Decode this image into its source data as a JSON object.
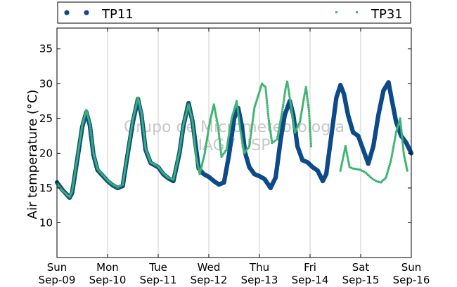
{
  "chart_data": {
    "type": "scatter",
    "title": "",
    "xlabel": "",
    "ylabel": "Air temperature (°C)",
    "ylim": [
      5,
      38
    ],
    "xlim_days": [
      0,
      7
    ],
    "y_ticks": [
      10,
      15,
      20,
      25,
      30,
      35
    ],
    "x_ticks": [
      {
        "day": "Sun",
        "date": "Sep-09"
      },
      {
        "day": "Mon",
        "date": "Sep-10"
      },
      {
        "day": "Tue",
        "date": "Sep-11"
      },
      {
        "day": "Wed",
        "date": "Sep-12"
      },
      {
        "day": "Thu",
        "date": "Sep-13"
      },
      {
        "day": "Fri",
        "date": "Sep-14"
      },
      {
        "day": "Sat",
        "date": "Sep-15"
      },
      {
        "day": "Sun",
        "date": "Sep-16"
      }
    ],
    "grid": "vertical",
    "legend_position": "top, outside plot",
    "watermark": [
      "Grupo de Micrometeorologia",
      "IAG / USP"
    ],
    "x_unit": "days since Sep-09 00:00",
    "series": [
      {
        "name": "TP11",
        "color": "#0d4a8a",
        "marker": "circle",
        "points": [
          [
            0.0,
            15.8
          ],
          [
            0.1,
            14.8
          ],
          [
            0.2,
            14.0
          ],
          [
            0.25,
            13.6
          ],
          [
            0.3,
            14.3
          ],
          [
            0.4,
            19.0
          ],
          [
            0.5,
            23.8
          ],
          [
            0.58,
            25.9
          ],
          [
            0.65,
            24.0
          ],
          [
            0.72,
            19.8
          ],
          [
            0.8,
            17.6
          ],
          [
            0.9,
            16.8
          ],
          [
            1.0,
            16.0
          ],
          [
            1.1,
            15.4
          ],
          [
            1.2,
            15.0
          ],
          [
            1.3,
            15.3
          ],
          [
            1.4,
            20.0
          ],
          [
            1.5,
            24.5
          ],
          [
            1.6,
            27.8
          ],
          [
            1.67,
            25.5
          ],
          [
            1.75,
            20.5
          ],
          [
            1.85,
            18.6
          ],
          [
            2.0,
            18.0
          ],
          [
            2.1,
            17.0
          ],
          [
            2.2,
            16.4
          ],
          [
            2.3,
            16.0
          ],
          [
            2.42,
            20.0
          ],
          [
            2.5,
            24.0
          ],
          [
            2.6,
            27.2
          ],
          [
            2.68,
            24.5
          ],
          [
            2.75,
            20.6
          ],
          [
            2.8,
            17.8
          ],
          [
            2.9,
            17.0
          ],
          [
            3.0,
            16.6
          ],
          [
            3.1,
            16.0
          ],
          [
            3.2,
            15.5
          ],
          [
            3.3,
            15.8
          ],
          [
            3.4,
            19.8
          ],
          [
            3.5,
            25.0
          ],
          [
            3.58,
            26.5
          ],
          [
            3.65,
            24.0
          ],
          [
            3.72,
            20.0
          ],
          [
            3.8,
            18.0
          ],
          [
            3.9,
            17.0
          ],
          [
            4.0,
            16.7
          ],
          [
            4.1,
            16.3
          ],
          [
            4.22,
            15.0
          ],
          [
            4.32,
            16.5
          ],
          [
            4.42,
            22.0
          ],
          [
            4.5,
            25.5
          ],
          [
            4.6,
            27.5
          ],
          [
            4.67,
            25.5
          ],
          [
            4.75,
            21.0
          ],
          [
            4.85,
            19.0
          ],
          [
            4.95,
            18.7
          ],
          [
            5.05,
            18.0
          ],
          [
            5.15,
            17.5
          ],
          [
            5.25,
            16.0
          ],
          [
            5.32,
            17.0
          ],
          [
            5.42,
            22.5
          ],
          [
            5.52,
            28.0
          ],
          [
            5.6,
            29.8
          ],
          [
            5.67,
            28.5
          ],
          [
            5.75,
            25.5
          ],
          [
            5.85,
            23.0
          ],
          [
            5.95,
            22.5
          ],
          [
            6.05,
            20.5
          ],
          [
            6.15,
            18.5
          ],
          [
            6.25,
            21.0
          ],
          [
            6.35,
            25.5
          ],
          [
            6.45,
            29.0
          ],
          [
            6.55,
            30.2
          ],
          [
            6.62,
            27.5
          ],
          [
            6.7,
            24.5
          ],
          [
            6.8,
            22.5
          ],
          [
            6.9,
            21.5
          ],
          [
            7.0,
            20.0
          ]
        ]
      },
      {
        "name": "TP31",
        "color": "#3cb371",
        "marker": "dot",
        "points": [
          [
            0.0,
            15.6
          ],
          [
            0.1,
            14.7
          ],
          [
            0.2,
            14.0
          ],
          [
            0.25,
            13.7
          ],
          [
            0.3,
            14.5
          ],
          [
            0.4,
            19.2
          ],
          [
            0.5,
            24.0
          ],
          [
            0.58,
            26.2
          ],
          [
            0.65,
            24.2
          ],
          [
            0.72,
            20.0
          ],
          [
            0.8,
            17.8
          ],
          [
            0.9,
            16.9
          ],
          [
            1.0,
            16.1
          ],
          [
            1.1,
            15.5
          ],
          [
            1.2,
            15.1
          ],
          [
            1.3,
            15.5
          ],
          [
            1.4,
            20.2
          ],
          [
            1.5,
            24.8
          ],
          [
            1.6,
            28.0
          ],
          [
            1.67,
            25.7
          ],
          [
            1.75,
            20.7
          ],
          [
            1.85,
            18.7
          ],
          [
            2.0,
            18.1
          ],
          [
            2.1,
            17.1
          ],
          [
            2.2,
            16.5
          ],
          [
            2.3,
            16.2
          ],
          [
            2.42,
            20.2
          ],
          [
            2.5,
            24.2
          ],
          [
            2.6,
            27.0
          ],
          [
            2.68,
            24.5
          ],
          [
            2.75,
            19.5
          ],
          [
            2.82,
            17.0
          ],
          [
            2.92,
            20.0
          ],
          [
            3.02,
            24.5
          ],
          [
            3.1,
            27.0
          ],
          [
            3.18,
            24.0
          ],
          [
            3.25,
            19.5
          ],
          [
            3.35,
            20.5
          ],
          [
            3.45,
            25.0
          ],
          [
            3.55,
            27.5
          ],
          [
            3.62,
            23.5
          ],
          [
            3.7,
            20.0
          ],
          [
            3.8,
            21.0
          ],
          [
            3.9,
            26.5
          ],
          [
            4.05,
            30.0
          ],
          [
            4.12,
            29.5
          ],
          [
            4.18,
            25.0
          ],
          [
            4.25,
            21.5
          ],
          [
            4.35,
            22.0
          ],
          [
            4.45,
            26.0
          ],
          [
            4.52,
            29.5
          ],
          [
            4.55,
            30.3
          ],
          [
            4.62,
            27.0
          ],
          [
            4.7,
            23.0
          ],
          [
            4.8,
            24.5
          ],
          [
            4.88,
            28.0
          ],
          [
            4.92,
            29.5
          ],
          [
            4.98,
            26.0
          ],
          [
            5.02,
            21.0
          ],
          [
            5.6,
            17.5
          ],
          [
            5.7,
            21.0
          ],
          [
            5.78,
            18.0
          ],
          [
            5.85,
            17.8
          ],
          [
            6.0,
            17.6
          ],
          [
            6.1,
            17.2
          ],
          [
            6.2,
            16.5
          ],
          [
            6.3,
            16.0
          ],
          [
            6.4,
            15.8
          ],
          [
            6.5,
            16.5
          ],
          [
            6.6,
            19.0
          ],
          [
            6.7,
            23.0
          ],
          [
            6.78,
            25.0
          ],
          [
            6.85,
            20.0
          ],
          [
            6.92,
            17.5
          ]
        ]
      }
    ]
  }
}
